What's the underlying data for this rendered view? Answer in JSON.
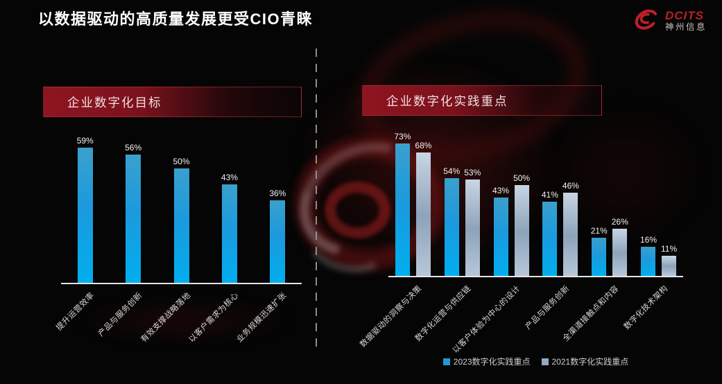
{
  "slide": {
    "title": "以数据驱动的高质量发展更受CIO青睐"
  },
  "logo": {
    "brand": "DCITS",
    "name": "神州信息",
    "color": "#bb1f29"
  },
  "chart_data": [
    {
      "type": "bar",
      "title": "企业数字化目标",
      "categories": [
        "提升运营效率",
        "产品与服务创新",
        "有效支撑战略落地",
        "以客户需求为核心",
        "业务规模迅速扩张"
      ],
      "values": [
        59,
        56,
        50,
        43,
        36
      ],
      "unit": "%",
      "ylim": [
        0,
        65
      ],
      "grid": false,
      "bar_color": "#00aeef"
    },
    {
      "type": "bar",
      "title": "企业数字化实践重点",
      "categories": [
        "数据驱动的洞察与决策",
        "数字化运营与供应链",
        "以客户体验为中心的设计",
        "产品与服务创新",
        "全渠道接触点和内容",
        "数字化技术架构"
      ],
      "series": [
        {
          "name": "2023数字化实践重点",
          "values": [
            73,
            54,
            43,
            41,
            21,
            16
          ],
          "color": "#00aeef"
        },
        {
          "name": "2021数字化实践重点",
          "values": [
            68,
            53,
            50,
            46,
            26,
            11
          ],
          "color": "#9fb4ca"
        }
      ],
      "unit": "%",
      "ylim": [
        0,
        80
      ],
      "grid": false,
      "legend_position": "bottom"
    }
  ],
  "legend": [
    {
      "label": "2023数字化实践重点",
      "color": "#1e9ad2"
    },
    {
      "label": "2021数字化实践重点",
      "color": "#93a9c0"
    }
  ],
  "colors": {
    "background": "#050505",
    "accent_red": "#8e1520",
    "title_text": "#ffffff",
    "banner_text": "#f3dfe1",
    "value_text": "#f2f2f2",
    "category_text": "#d9d9d9",
    "axis_line": "#e4e4e4",
    "divider": "#8f8f8f"
  }
}
